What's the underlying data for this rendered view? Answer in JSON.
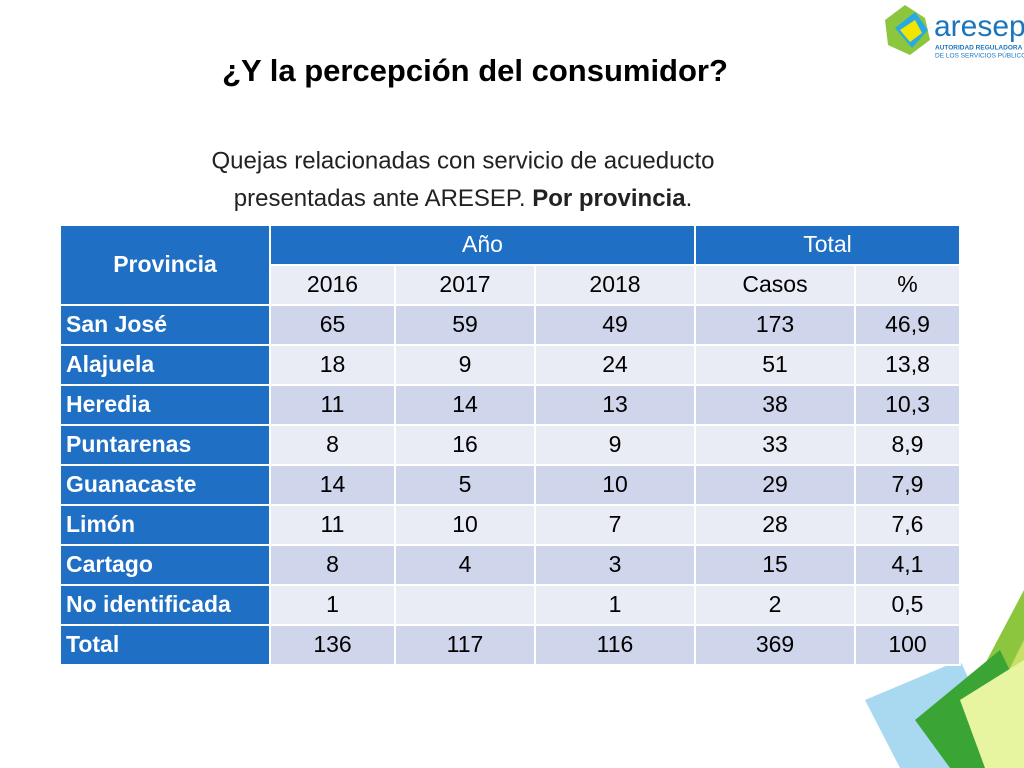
{
  "title": "¿Y la percepción del consumidor?",
  "subtitle": {
    "line1": "Quejas relacionadas con servicio de acueducto",
    "line2": "presentadas ante ARESEP. ",
    "bold": "Por provincia",
    "end": "."
  },
  "logo": {
    "name": "aresep",
    "tagline1": "AUTORIDAD REGULADORA",
    "tagline2": "DE LOS SERVICIOS PÚBLICOS"
  },
  "table": {
    "header": {
      "provincia": "Provincia",
      "year": "Año",
      "total": "Total"
    },
    "subheader": [
      "2016",
      "2017",
      "2018",
      "Casos",
      "%"
    ],
    "rows": [
      [
        "San José",
        "65",
        "59",
        "49",
        "173",
        "46,9"
      ],
      [
        "Alajuela",
        "18",
        "9",
        "24",
        "51",
        "13,8"
      ],
      [
        "Heredia",
        "11",
        "14",
        "13",
        "38",
        "10,3"
      ],
      [
        "Puntarenas",
        "8",
        "16",
        "9",
        "33",
        "8,9"
      ],
      [
        "Guanacaste",
        "14",
        "5",
        "10",
        "29",
        "7,9"
      ],
      [
        "Limón",
        "11",
        "10",
        "7",
        "28",
        "7,6"
      ],
      [
        "Cartago",
        "8",
        "4",
        "3",
        "15",
        "4,1"
      ],
      [
        "No identificada",
        "1",
        null,
        "1",
        "2",
        "0,5"
      ],
      [
        "Total",
        "136",
        "117",
        "116",
        "369",
        "100"
      ]
    ]
  }
}
